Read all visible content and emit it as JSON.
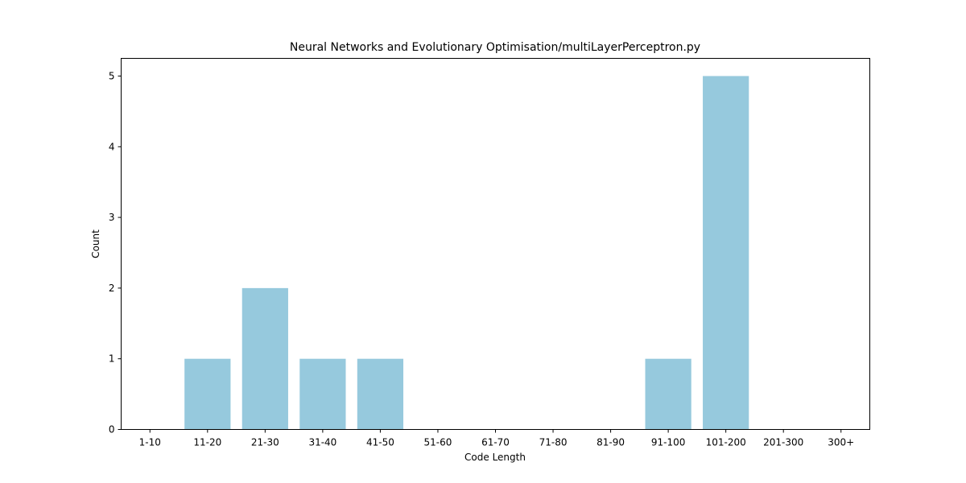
{
  "chart_data": {
    "type": "bar",
    "title": "Neural Networks and Evolutionary Optimisation/multiLayerPerceptron.py",
    "xlabel": "Code Length",
    "ylabel": "Count",
    "categories": [
      "1-10",
      "11-20",
      "21-30",
      "31-40",
      "41-50",
      "51-60",
      "61-70",
      "71-80",
      "81-90",
      "91-100",
      "101-200",
      "201-300",
      "300+"
    ],
    "values": [
      0,
      1,
      2,
      1,
      1,
      0,
      0,
      0,
      0,
      1,
      5,
      0,
      0
    ],
    "yticks": [
      0,
      1,
      2,
      3,
      4,
      5
    ],
    "ylim": [
      0,
      5.25
    ],
    "grid": false,
    "bar_color": "#96c9dd"
  }
}
